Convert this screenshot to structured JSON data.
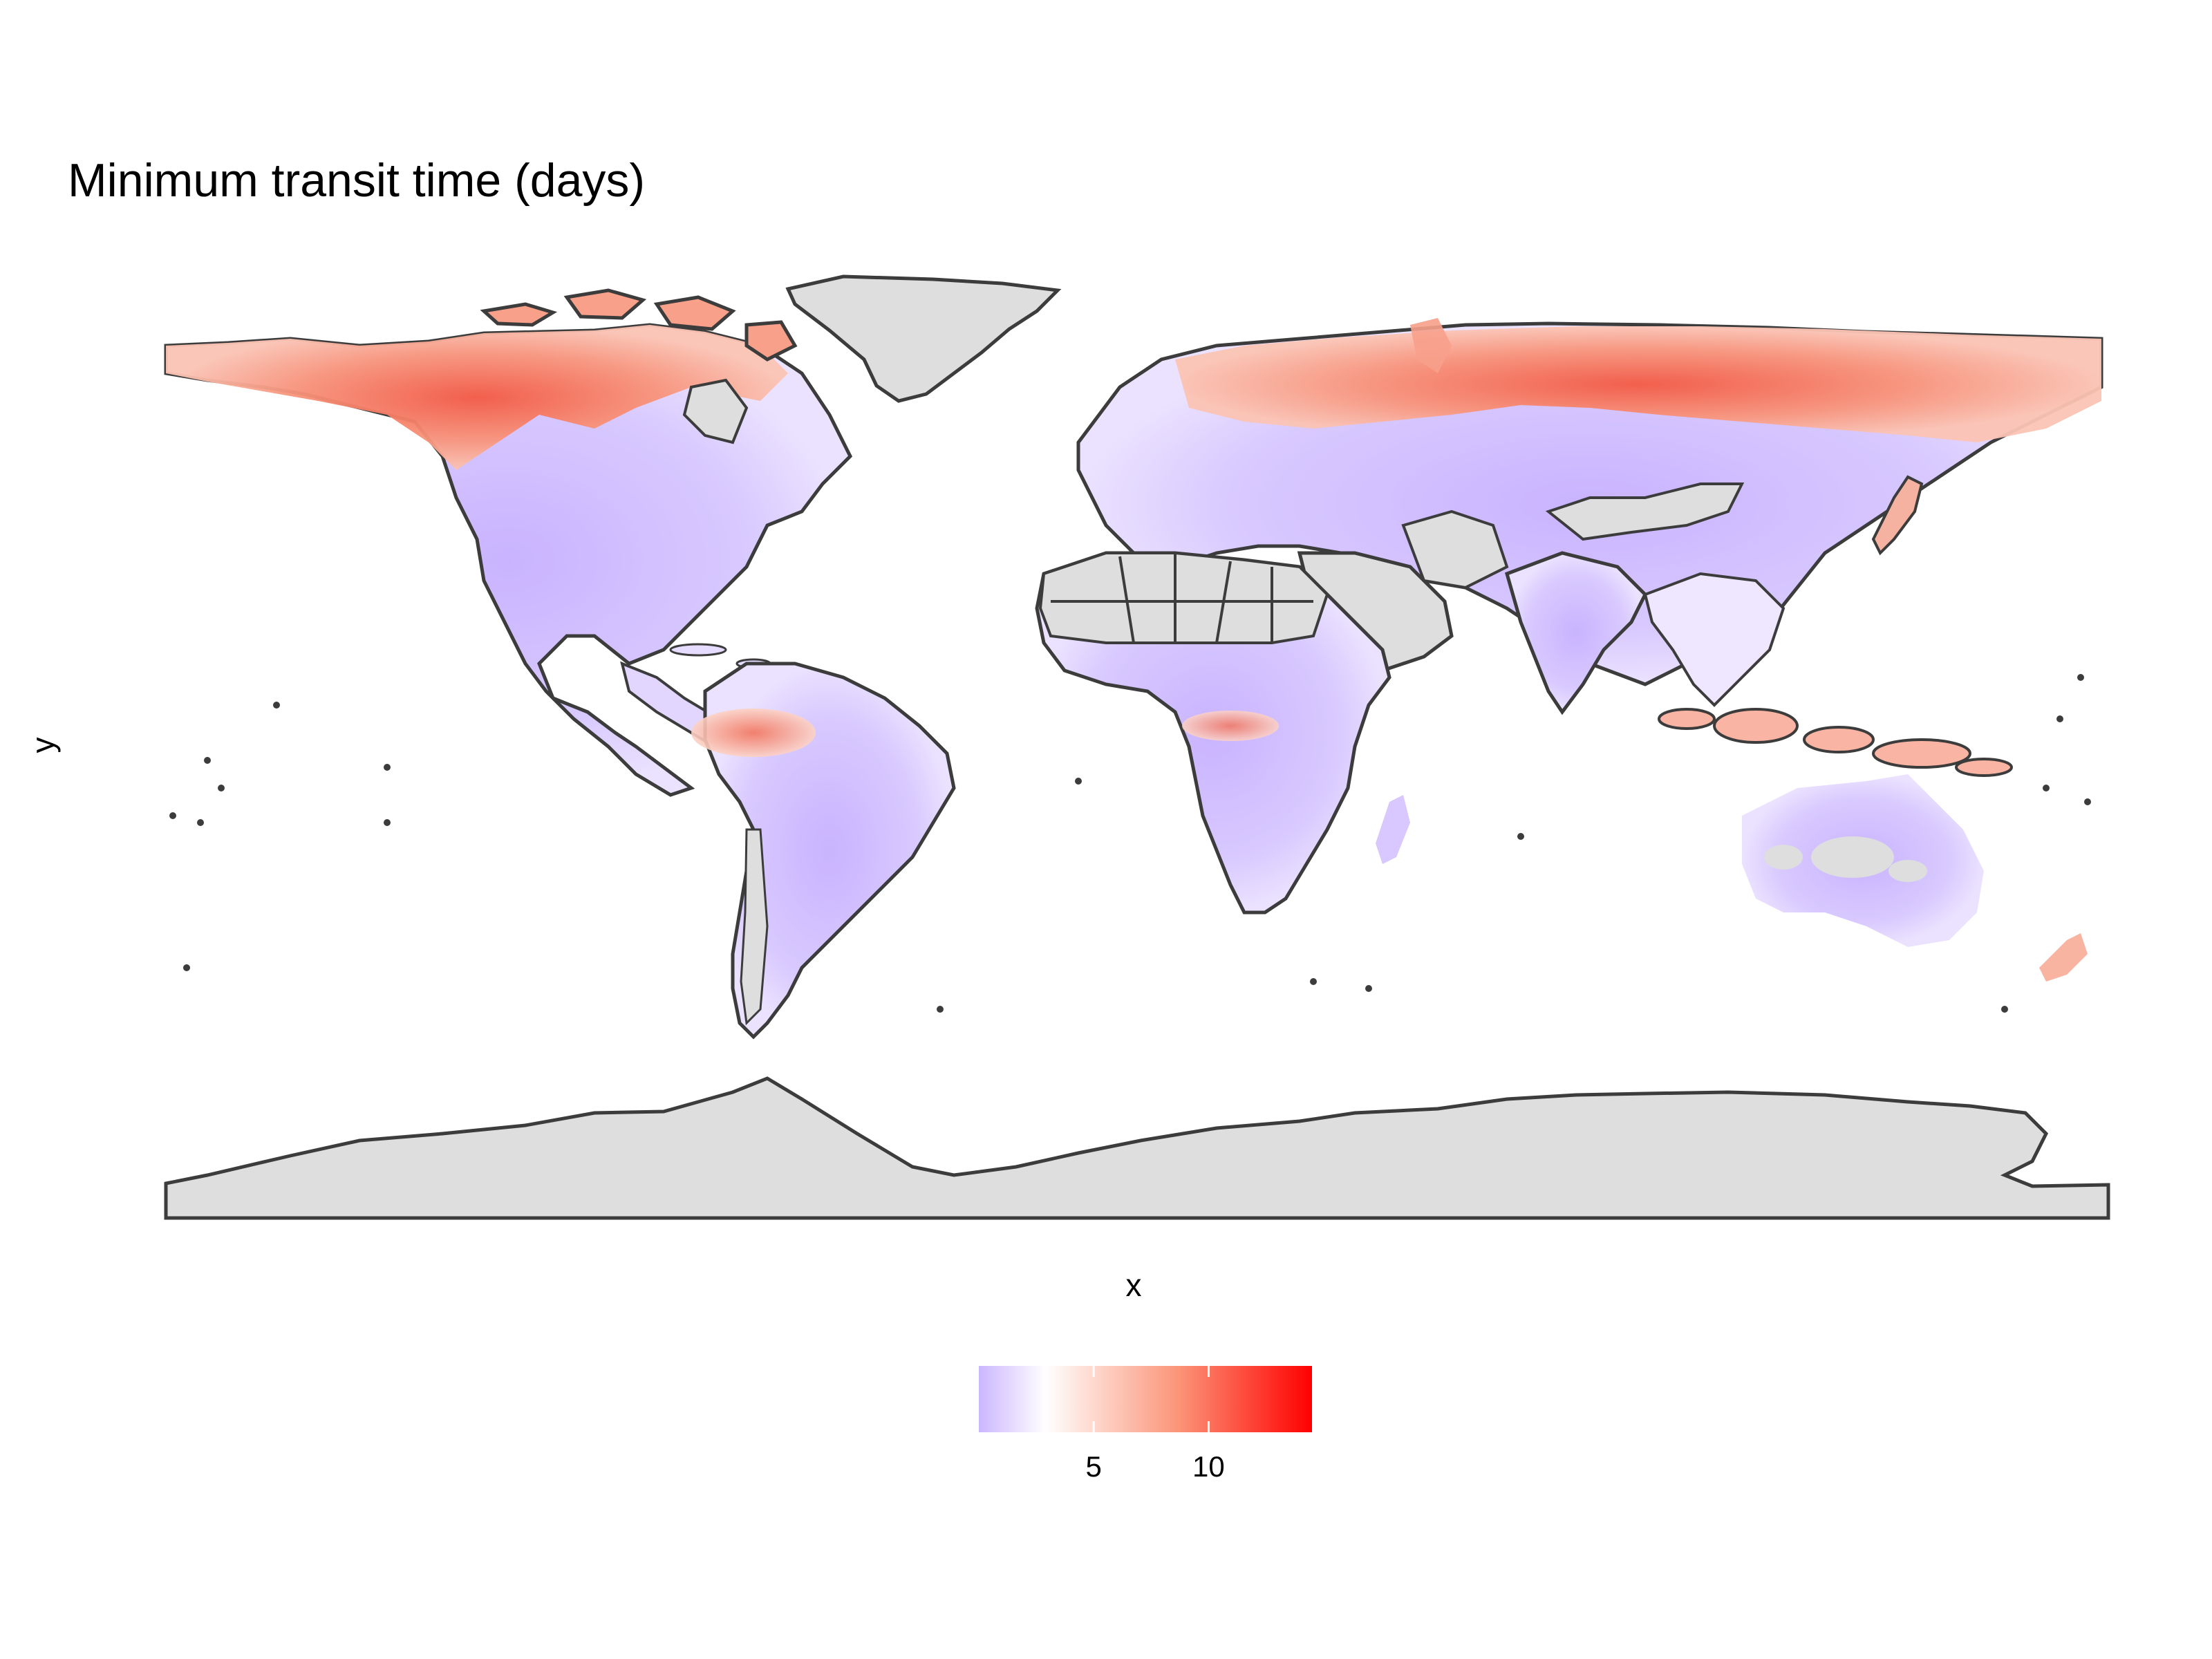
{
  "title": "Minimum transit time (days)",
  "axes": {
    "xlabel": "x",
    "ylabel": "y"
  },
  "legend": {
    "placement": "bottom",
    "range": [
      0,
      14.5
    ],
    "colors": {
      "low": "#cbb6ff",
      "mid": "#ffffff",
      "high": "#ff0000"
    },
    "midpoint": 3,
    "ticks": [
      {
        "value": 5,
        "label": "5"
      },
      {
        "value": 10,
        "label": "10"
      }
    ]
  },
  "colors": {
    "land_no_data": "#dedede",
    "border": "#3c3c3c",
    "background": "#ffffff"
  }
}
